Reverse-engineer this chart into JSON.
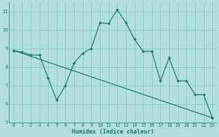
{
  "xlabel": "Humidex (Indice chaleur)",
  "bg_color": "#b2dfdb",
  "grid_color": "#80cbc4",
  "line_color": "#1a7a6e",
  "xlim": [
    -0.5,
    23.5
  ],
  "ylim": [
    5,
    11.5
  ],
  "xticks": [
    0,
    1,
    2,
    3,
    4,
    5,
    6,
    7,
    8,
    9,
    10,
    11,
    12,
    13,
    14,
    15,
    16,
    17,
    18,
    19,
    20,
    21,
    22,
    23
  ],
  "yticks": [
    5,
    6,
    7,
    8,
    9,
    10,
    11
  ],
  "curve1_x": [
    0,
    1,
    2,
    3,
    4,
    5,
    6,
    7,
    8,
    9,
    10,
    11,
    12,
    13,
    14,
    15,
    16,
    17,
    18,
    19,
    20,
    21,
    22,
    23
  ],
  "curve1_y": [
    8.9,
    8.8,
    8.65,
    8.65,
    7.4,
    6.2,
    7.0,
    8.2,
    8.75,
    9.0,
    10.4,
    10.35,
    11.1,
    10.4,
    9.5,
    8.85,
    8.85,
    7.25,
    8.5,
    7.25,
    7.25,
    6.5,
    6.5,
    5.25
  ],
  "curve2_x": [
    0,
    23
  ],
  "curve2_y": [
    8.9,
    5.25
  ]
}
